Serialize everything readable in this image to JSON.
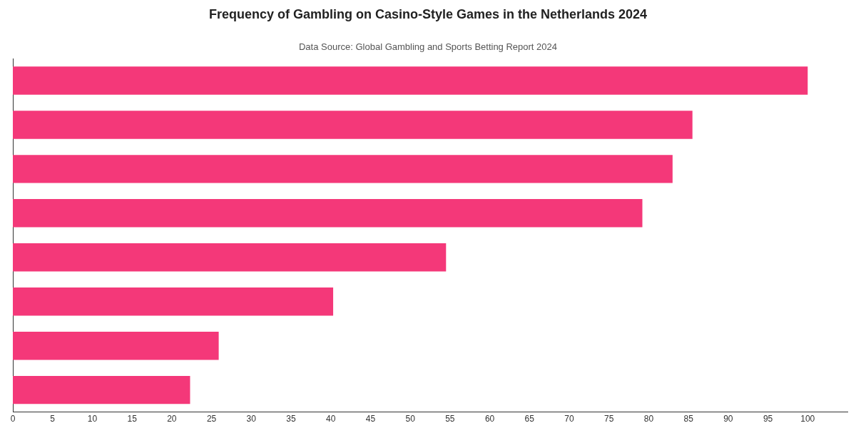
{
  "chart_data": {
    "type": "bar",
    "orientation": "horizontal",
    "title": "Frequency of Gambling on Casino-Style Games in the Netherlands 2024",
    "subtitle": "Data Source: Global Gambling and Sports Betting Report 2024",
    "categories": [
      null,
      null,
      null,
      null,
      null,
      null,
      null,
      null
    ],
    "values": [
      100,
      85.5,
      83,
      79.2,
      54.5,
      40.3,
      25.9,
      22.3
    ],
    "color": "#f43879",
    "xlim": [
      0,
      105
    ],
    "xticks": [
      0,
      5,
      10,
      15,
      20,
      25,
      30,
      35,
      40,
      45,
      50,
      55,
      60,
      65,
      70,
      75,
      80,
      85,
      90,
      95,
      100
    ],
    "grid": false,
    "legend": false
  }
}
